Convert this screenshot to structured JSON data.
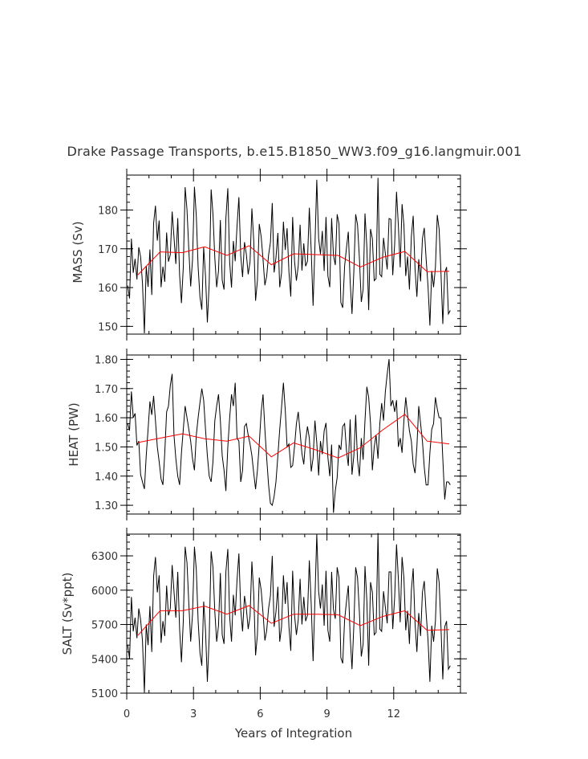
{
  "chart_data": {
    "type": "line",
    "title": "Drake Passage Transports, b.e15.B1850_WW3.f09_g16.langmuir.001",
    "xlabel": "Years of Integration",
    "xlim": [
      0,
      15
    ],
    "x_ticks": [
      0,
      3,
      6,
      9,
      12
    ],
    "colors": {
      "monthly": "#000000",
      "annual": "#ff0000"
    },
    "panels": [
      {
        "id": "mass",
        "ylabel": "MASS (Sv)",
        "ylim": [
          148,
          189
        ],
        "y_ticks": [
          150,
          160,
          170,
          180
        ],
        "y_tick_labels": [
          "150",
          "160",
          "170",
          "180"
        ],
        "annual_mean": [
          {
            "x": 0.5,
            "y": 163.3
          },
          {
            "x": 1.5,
            "y": 169.2
          },
          {
            "x": 2.5,
            "y": 169.0
          },
          {
            "x": 3.5,
            "y": 170.5
          },
          {
            "x": 4.5,
            "y": 168.3
          },
          {
            "x": 5.5,
            "y": 170.8
          },
          {
            "x": 6.5,
            "y": 165.9
          },
          {
            "x": 7.5,
            "y": 168.7
          },
          {
            "x": 8.5,
            "y": 168.5
          },
          {
            "x": 9.5,
            "y": 168.3
          },
          {
            "x": 10.5,
            "y": 165.3
          },
          {
            "x": 11.5,
            "y": 167.8
          },
          {
            "x": 12.5,
            "y": 169.3
          },
          {
            "x": 13.5,
            "y": 164.1
          },
          {
            "x": 14.5,
            "y": 164.2
          }
        ],
        "monthly": [
          160.5,
          157.2,
          172.6,
          163.8,
          167.4,
          162.1,
          170.4,
          167.9,
          161.2,
          148.2,
          165.6,
          160.2,
          169.8,
          158.1,
          176.6,
          181.1,
          172.1,
          177.3,
          160.1,
          165.4,
          161.5,
          174.2,
          166.7,
          168.5,
          179.6,
          173.0,
          166.1,
          177.9,
          163.2,
          156.0,
          165.3,
          185.9,
          180.1,
          169.7,
          160.3,
          167.2,
          186.0,
          178.5,
          165.3,
          157.5,
          154.3,
          170.4,
          163.0,
          151.0,
          161.2,
          185.3,
          178.9,
          167.6,
          160.1,
          164.3,
          177.4,
          161.9,
          159.5,
          177.9,
          185.6,
          166.5,
          160.0,
          172.0,
          166.8,
          175.9,
          183.3,
          168.2,
          162.7,
          171.7,
          168.6,
          163.4,
          166.6,
          180.4,
          172.2,
          156.6,
          161.8,
          176.4,
          173.1,
          167.3,
          160.6,
          163.0,
          168.4,
          171.6,
          181.8,
          163.9,
          167.7,
          174.1,
          160.1,
          163.8,
          177.0,
          169.7,
          175.3,
          164.0,
          157.7,
          178.2,
          166.7,
          161.8,
          165.6,
          176.2,
          164.4,
          171.4,
          165.5,
          166.8,
          180.6,
          169.3,
          155.3,
          170.8,
          187.8,
          172.7,
          168.6,
          174.6,
          164.3,
          178.2,
          163.0,
          160.1,
          177.9,
          168.3,
          165.8,
          178.9,
          176.4,
          156.2,
          154.8,
          165.5,
          170.2,
          174.4,
          161.6,
          153.2,
          164.2,
          178.9,
          176.2,
          167.7,
          156.3,
          159.6,
          179.1,
          170.5,
          154.2,
          175.1,
          172.6,
          161.8,
          162.3,
          188.3,
          163.4,
          162.8,
          172.8,
          168.7,
          164.7,
          177.8,
          177.6,
          163.2,
          171.3,
          184.7,
          176.0,
          165.2,
          181.5,
          176.2,
          163.0,
          168.0,
          159.5,
          173.2,
          178.5,
          164.8,
          157.6,
          167.3,
          161.6,
          172.6,
          175.4,
          167.4,
          160.3,
          150.2,
          164.3,
          160.1,
          165.2,
          178.7,
          175.1,
          163.9,
          150.6,
          163.8,
          165.3,
          153.2,
          154.1
        ]
      },
      {
        "id": "heat",
        "ylabel": "HEAT (PW)",
        "ylim": [
          1.27,
          1.815
        ],
        "y_ticks": [
          1.3,
          1.4,
          1.5,
          1.6,
          1.7,
          1.8
        ],
        "y_tick_labels": [
          "1.30",
          "1.40",
          "1.50",
          "1.60",
          "1.70",
          "1.80"
        ],
        "annual_mean": [
          {
            "x": 0.5,
            "y": 1.515
          },
          {
            "x": 1.5,
            "y": 1.53
          },
          {
            "x": 2.5,
            "y": 1.545
          },
          {
            "x": 3.5,
            "y": 1.528
          },
          {
            "x": 4.5,
            "y": 1.52
          },
          {
            "x": 5.5,
            "y": 1.537
          },
          {
            "x": 6.5,
            "y": 1.466
          },
          {
            "x": 7.5,
            "y": 1.514
          },
          {
            "x": 8.5,
            "y": 1.49
          },
          {
            "x": 9.5,
            "y": 1.462
          },
          {
            "x": 10.5,
            "y": 1.497
          },
          {
            "x": 11.5,
            "y": 1.558
          },
          {
            "x": 12.5,
            "y": 1.612
          },
          {
            "x": 13.5,
            "y": 1.52
          },
          {
            "x": 14.5,
            "y": 1.51
          }
        ],
        "monthly": [
          1.58,
          1.556,
          1.69,
          1.6,
          1.615,
          1.505,
          1.52,
          1.405,
          1.38,
          1.356,
          1.47,
          1.56,
          1.656,
          1.61,
          1.675,
          1.59,
          1.5,
          1.45,
          1.39,
          1.37,
          1.48,
          1.62,
          1.64,
          1.71,
          1.75,
          1.54,
          1.46,
          1.4,
          1.37,
          1.48,
          1.56,
          1.64,
          1.6,
          1.56,
          1.52,
          1.46,
          1.42,
          1.54,
          1.6,
          1.652,
          1.7,
          1.66,
          1.56,
          1.47,
          1.4,
          1.38,
          1.45,
          1.59,
          1.64,
          1.68,
          1.59,
          1.47,
          1.42,
          1.349,
          1.5,
          1.6,
          1.68,
          1.64,
          1.72,
          1.53,
          1.52,
          1.38,
          1.42,
          1.57,
          1.58,
          1.54,
          1.51,
          1.47,
          1.41,
          1.355,
          1.42,
          1.51,
          1.62,
          1.68,
          1.56,
          1.46,
          1.37,
          1.307,
          1.3,
          1.33,
          1.38,
          1.47,
          1.56,
          1.636,
          1.72,
          1.627,
          1.5,
          1.51,
          1.43,
          1.436,
          1.503,
          1.58,
          1.62,
          1.55,
          1.477,
          1.44,
          1.523,
          1.57,
          1.53,
          1.416,
          1.462,
          1.59,
          1.515,
          1.402,
          1.52,
          1.475,
          1.555,
          1.582,
          1.463,
          1.4,
          1.508,
          1.274,
          1.35,
          1.395,
          1.507,
          1.49,
          1.57,
          1.58,
          1.488,
          1.435,
          1.594,
          1.405,
          1.47,
          1.61,
          1.455,
          1.4,
          1.53,
          1.456,
          1.59,
          1.706,
          1.67,
          1.58,
          1.42,
          1.5,
          1.541,
          1.46,
          1.58,
          1.65,
          1.59,
          1.69,
          1.75,
          1.801,
          1.64,
          1.66,
          1.62,
          1.66,
          1.5,
          1.53,
          1.48,
          1.59,
          1.67,
          1.61,
          1.555,
          1.52,
          1.44,
          1.41,
          1.5,
          1.64,
          1.58,
          1.52,
          1.43,
          1.37,
          1.37,
          1.48,
          1.56,
          1.58,
          1.67,
          1.63,
          1.6,
          1.6,
          1.46,
          1.32,
          1.38,
          1.38,
          1.37
        ]
      },
      {
        "id": "salt",
        "ylabel": "SALT (Sv*ppt)",
        "ylim": [
          5100,
          6490
        ],
        "y_ticks": [
          5100,
          5400,
          5700,
          6000,
          6300
        ],
        "y_tick_labels": [
          "5100",
          "5400",
          "5700",
          "6000",
          "6300"
        ],
        "annual_mean": [
          {
            "x": 0.5,
            "y": 5605
          },
          {
            "x": 1.5,
            "y": 5820
          },
          {
            "x": 2.5,
            "y": 5820
          },
          {
            "x": 3.5,
            "y": 5860
          },
          {
            "x": 4.5,
            "y": 5790
          },
          {
            "x": 5.5,
            "y": 5865
          },
          {
            "x": 6.5,
            "y": 5710
          },
          {
            "x": 7.5,
            "y": 5790
          },
          {
            "x": 8.5,
            "y": 5790
          },
          {
            "x": 9.5,
            "y": 5785
          },
          {
            "x": 10.5,
            "y": 5690
          },
          {
            "x": 11.5,
            "y": 5770
          },
          {
            "x": 12.5,
            "y": 5820
          },
          {
            "x": 13.5,
            "y": 5650
          },
          {
            "x": 14.5,
            "y": 5655
          }
        ],
        "monthly": [
          5520,
          5400,
          5940,
          5640,
          5760,
          5580,
          5840,
          5740,
          5560,
          5105,
          5700,
          5520,
          5860,
          5460,
          6120,
          6290,
          5980,
          6130,
          5540,
          5730,
          5600,
          6040,
          5780,
          5840,
          6220,
          5990,
          5760,
          6160,
          5660,
          5370,
          5730,
          6380,
          6240,
          5880,
          5550,
          5790,
          6380,
          6180,
          5730,
          5450,
          5340,
          5900,
          5650,
          5200,
          5590,
          6340,
          6200,
          5810,
          5550,
          5690,
          6150,
          5610,
          5530,
          6160,
          6360,
          5770,
          5550,
          5960,
          5780,
          6090,
          6320,
          5830,
          5640,
          5950,
          5840,
          5660,
          5770,
          6250,
          5970,
          5430,
          5610,
          6110,
          6000,
          5800,
          5560,
          5650,
          5840,
          5950,
          6300,
          5680,
          5810,
          6030,
          5550,
          5680,
          6130,
          5880,
          6070,
          5680,
          5470,
          6170,
          5780,
          5610,
          5740,
          6100,
          5700,
          5940,
          5730,
          5780,
          6260,
          5870,
          5380,
          5920,
          6490,
          5990,
          5840,
          6050,
          5690,
          6170,
          5650,
          5550,
          6160,
          5830,
          5750,
          6200,
          6110,
          5410,
          5360,
          5740,
          5900,
          6040,
          5600,
          5310,
          5690,
          6200,
          6110,
          5810,
          5420,
          5530,
          6210,
          5910,
          5340,
          6070,
          5980,
          5610,
          5630,
          6500,
          5660,
          5640,
          5990,
          5850,
          5710,
          6160,
          6160,
          5660,
          5940,
          6400,
          6100,
          5720,
          6290,
          6110,
          5650,
          5820,
          5530,
          6000,
          6190,
          5710,
          5460,
          5800,
          5600,
          5980,
          6080,
          5800,
          5560,
          5200,
          5690,
          5550,
          5730,
          6190,
          6070,
          5680,
          5220,
          5680,
          5730,
          5310,
          5340
        ]
      }
    ]
  }
}
